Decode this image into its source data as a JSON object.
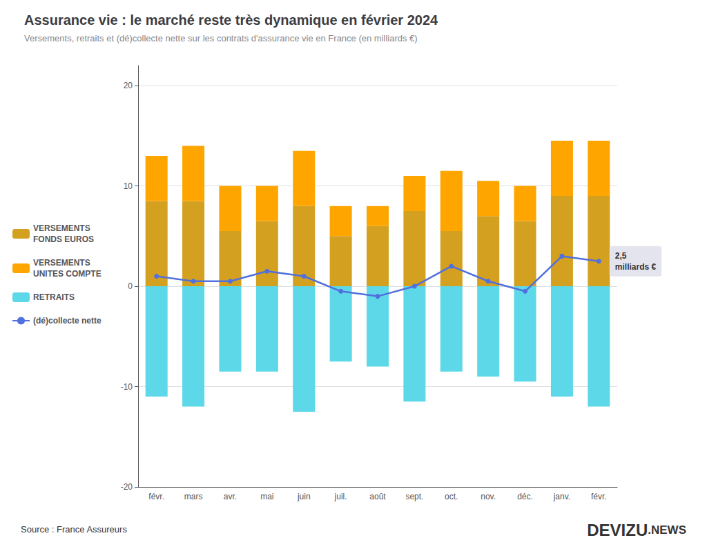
{
  "chart_data": {
    "type": "bar",
    "title": "Assurance vie : le marché reste très dynamique en février 2024",
    "subtitle": "Versements, retraits et (dé)collecte nette sur les contrats d'assurance vie en France (en milliards €)",
    "categories": [
      "févr.",
      "mars",
      "avr.",
      "mai",
      "juin",
      "juil.",
      "août",
      "sept.",
      "oct.",
      "nov.",
      "déc.",
      "janv.",
      "févr."
    ],
    "series": [
      {
        "name": "VERSEMENTS\nFONDS EUROS",
        "color": "#D4A020",
        "values": [
          8.5,
          8.5,
          5.5,
          6.5,
          8.0,
          5.0,
          6.0,
          7.5,
          5.5,
          7.0,
          6.5,
          9.0,
          9.0
        ]
      },
      {
        "name": "VERSEMENTS\nUNITES COMPTE",
        "color": "#FFA500",
        "values": [
          4.5,
          5.5,
          4.5,
          3.5,
          5.5,
          3.0,
          2.0,
          3.5,
          6.0,
          3.5,
          3.5,
          5.5,
          5.5
        ]
      },
      {
        "name": "RETRAITS",
        "color": "#5DD8E8",
        "values": [
          -11.0,
          -12.0,
          -8.5,
          -8.5,
          -12.5,
          -7.5,
          -8.0,
          -11.5,
          -8.5,
          -9.0,
          -9.5,
          -11.0,
          -12.0
        ]
      },
      {
        "name": "(dé)collecte nette",
        "type": "line",
        "marker": "circle",
        "values": [
          1.0,
          0.5,
          0.5,
          1.5,
          1.0,
          -0.5,
          -1.0,
          0.0,
          2.0,
          0.5,
          -0.5,
          3.0,
          2.5
        ]
      }
    ],
    "stacked": true,
    "ylim": [
      -20,
      22
    ],
    "yticks": [
      -20,
      -10,
      0,
      10,
      20
    ],
    "grid": true,
    "legend": "left",
    "annotation": "2,5\nmilliards €",
    "source": "Source : France Assureurs",
    "branding": [
      "DEVIZU",
      ".NEWS"
    ]
  }
}
